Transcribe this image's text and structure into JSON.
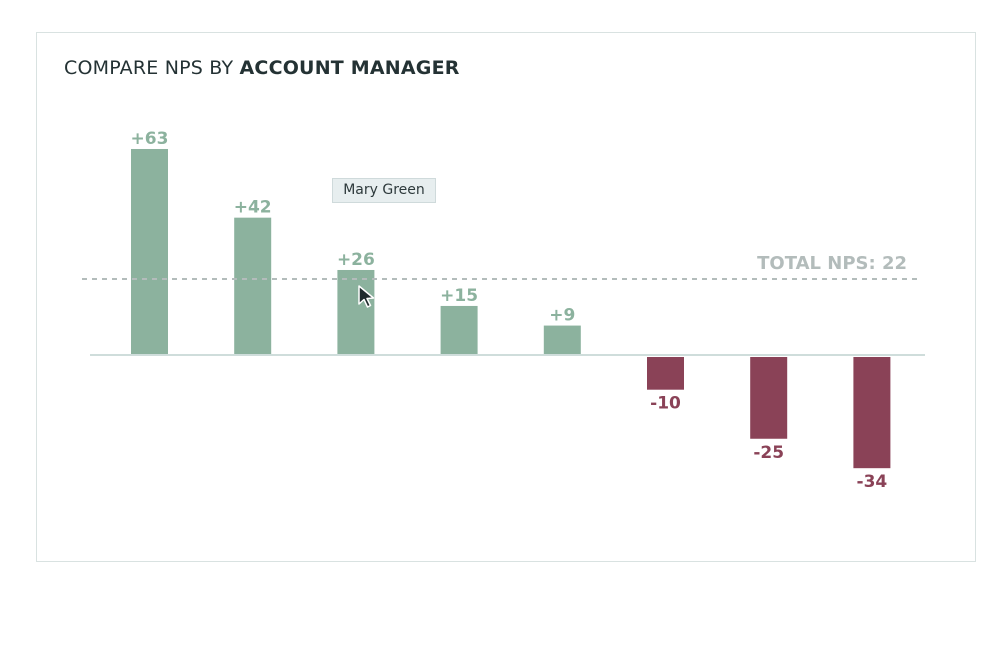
{
  "title": {
    "prefix": "COMPARE NPS BY ",
    "emphasis": "ACCOUNT MANAGER"
  },
  "reference": {
    "label": "TOTAL NPS: 22"
  },
  "tooltip": {
    "text": "Mary Green"
  },
  "icons": {
    "cursor": "mouse-pointer-icon"
  },
  "colors": {
    "positive": "#8cb29e",
    "negative": "#8a4257",
    "reference": "#b3bcbb",
    "baseline": "#cfdddb"
  },
  "chart_data": {
    "type": "bar",
    "values": [
      63,
      42,
      26,
      15,
      9,
      -10,
      -25,
      -34
    ],
    "data_labels": [
      "+63",
      "+42",
      "+26",
      "+15",
      "+9",
      "-10",
      "-25",
      "-34"
    ],
    "reference_line": 22,
    "grid": false,
    "legend": "none",
    "highlighted_index": 2
  }
}
